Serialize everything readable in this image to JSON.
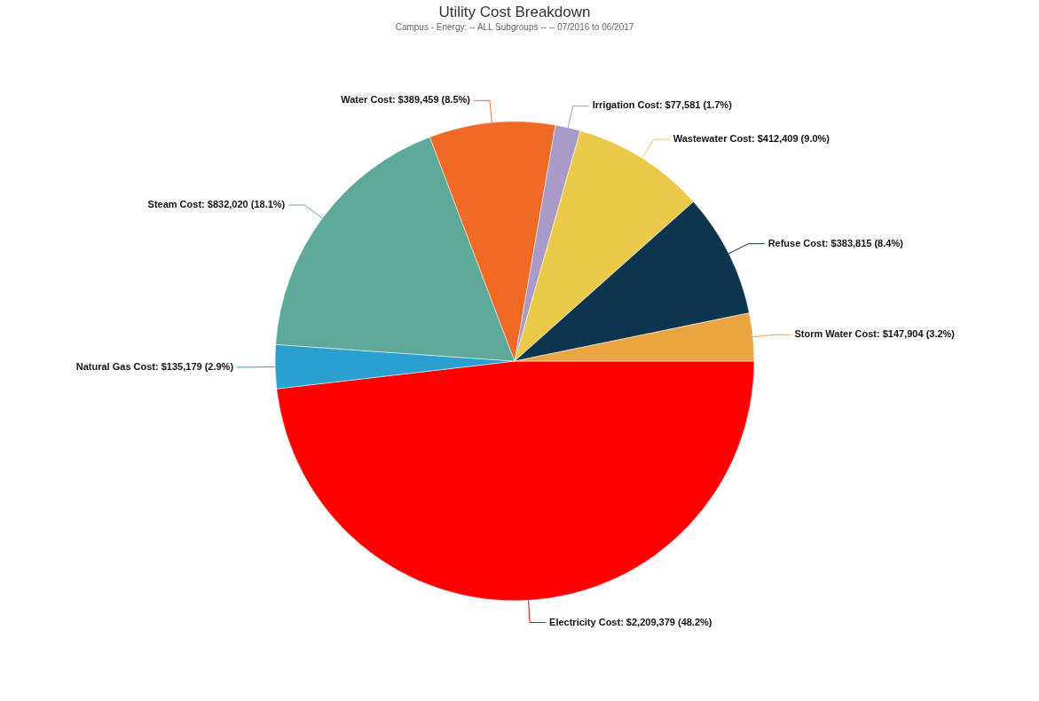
{
  "chart_data": {
    "type": "pie",
    "title": "Utility Cost Breakdown",
    "subtitle": "Campus - Energy: -- ALL Subgroups -- -- 07/2016 to 06/2017",
    "categories": [
      "Electricity Cost",
      "Natural Gas Cost",
      "Steam Cost",
      "Water Cost",
      "Irrigation Cost",
      "Wastewater Cost",
      "Refuse Cost",
      "Storm Water Cost"
    ],
    "values": [
      2209379,
      135179,
      832020,
      389459,
      77581,
      412409,
      383815,
      147904
    ],
    "value_labels": [
      "$2,209,379 (48.2%)",
      "$135,179 (2.9%)",
      "$832,020 (18.1%)",
      "$389,459 (8.5%)",
      "$77,581 (1.7%)",
      "$412,409 (9.0%)",
      "$383,815 (8.4%)",
      "$147,904 (3.2%)"
    ],
    "colors": [
      "#ff0000",
      "#2aa0d0",
      "#5fa99a",
      "#f06a25",
      "#a99ac8",
      "#ecc94a",
      "#0e3550",
      "#eba540"
    ],
    "legend": false
  }
}
